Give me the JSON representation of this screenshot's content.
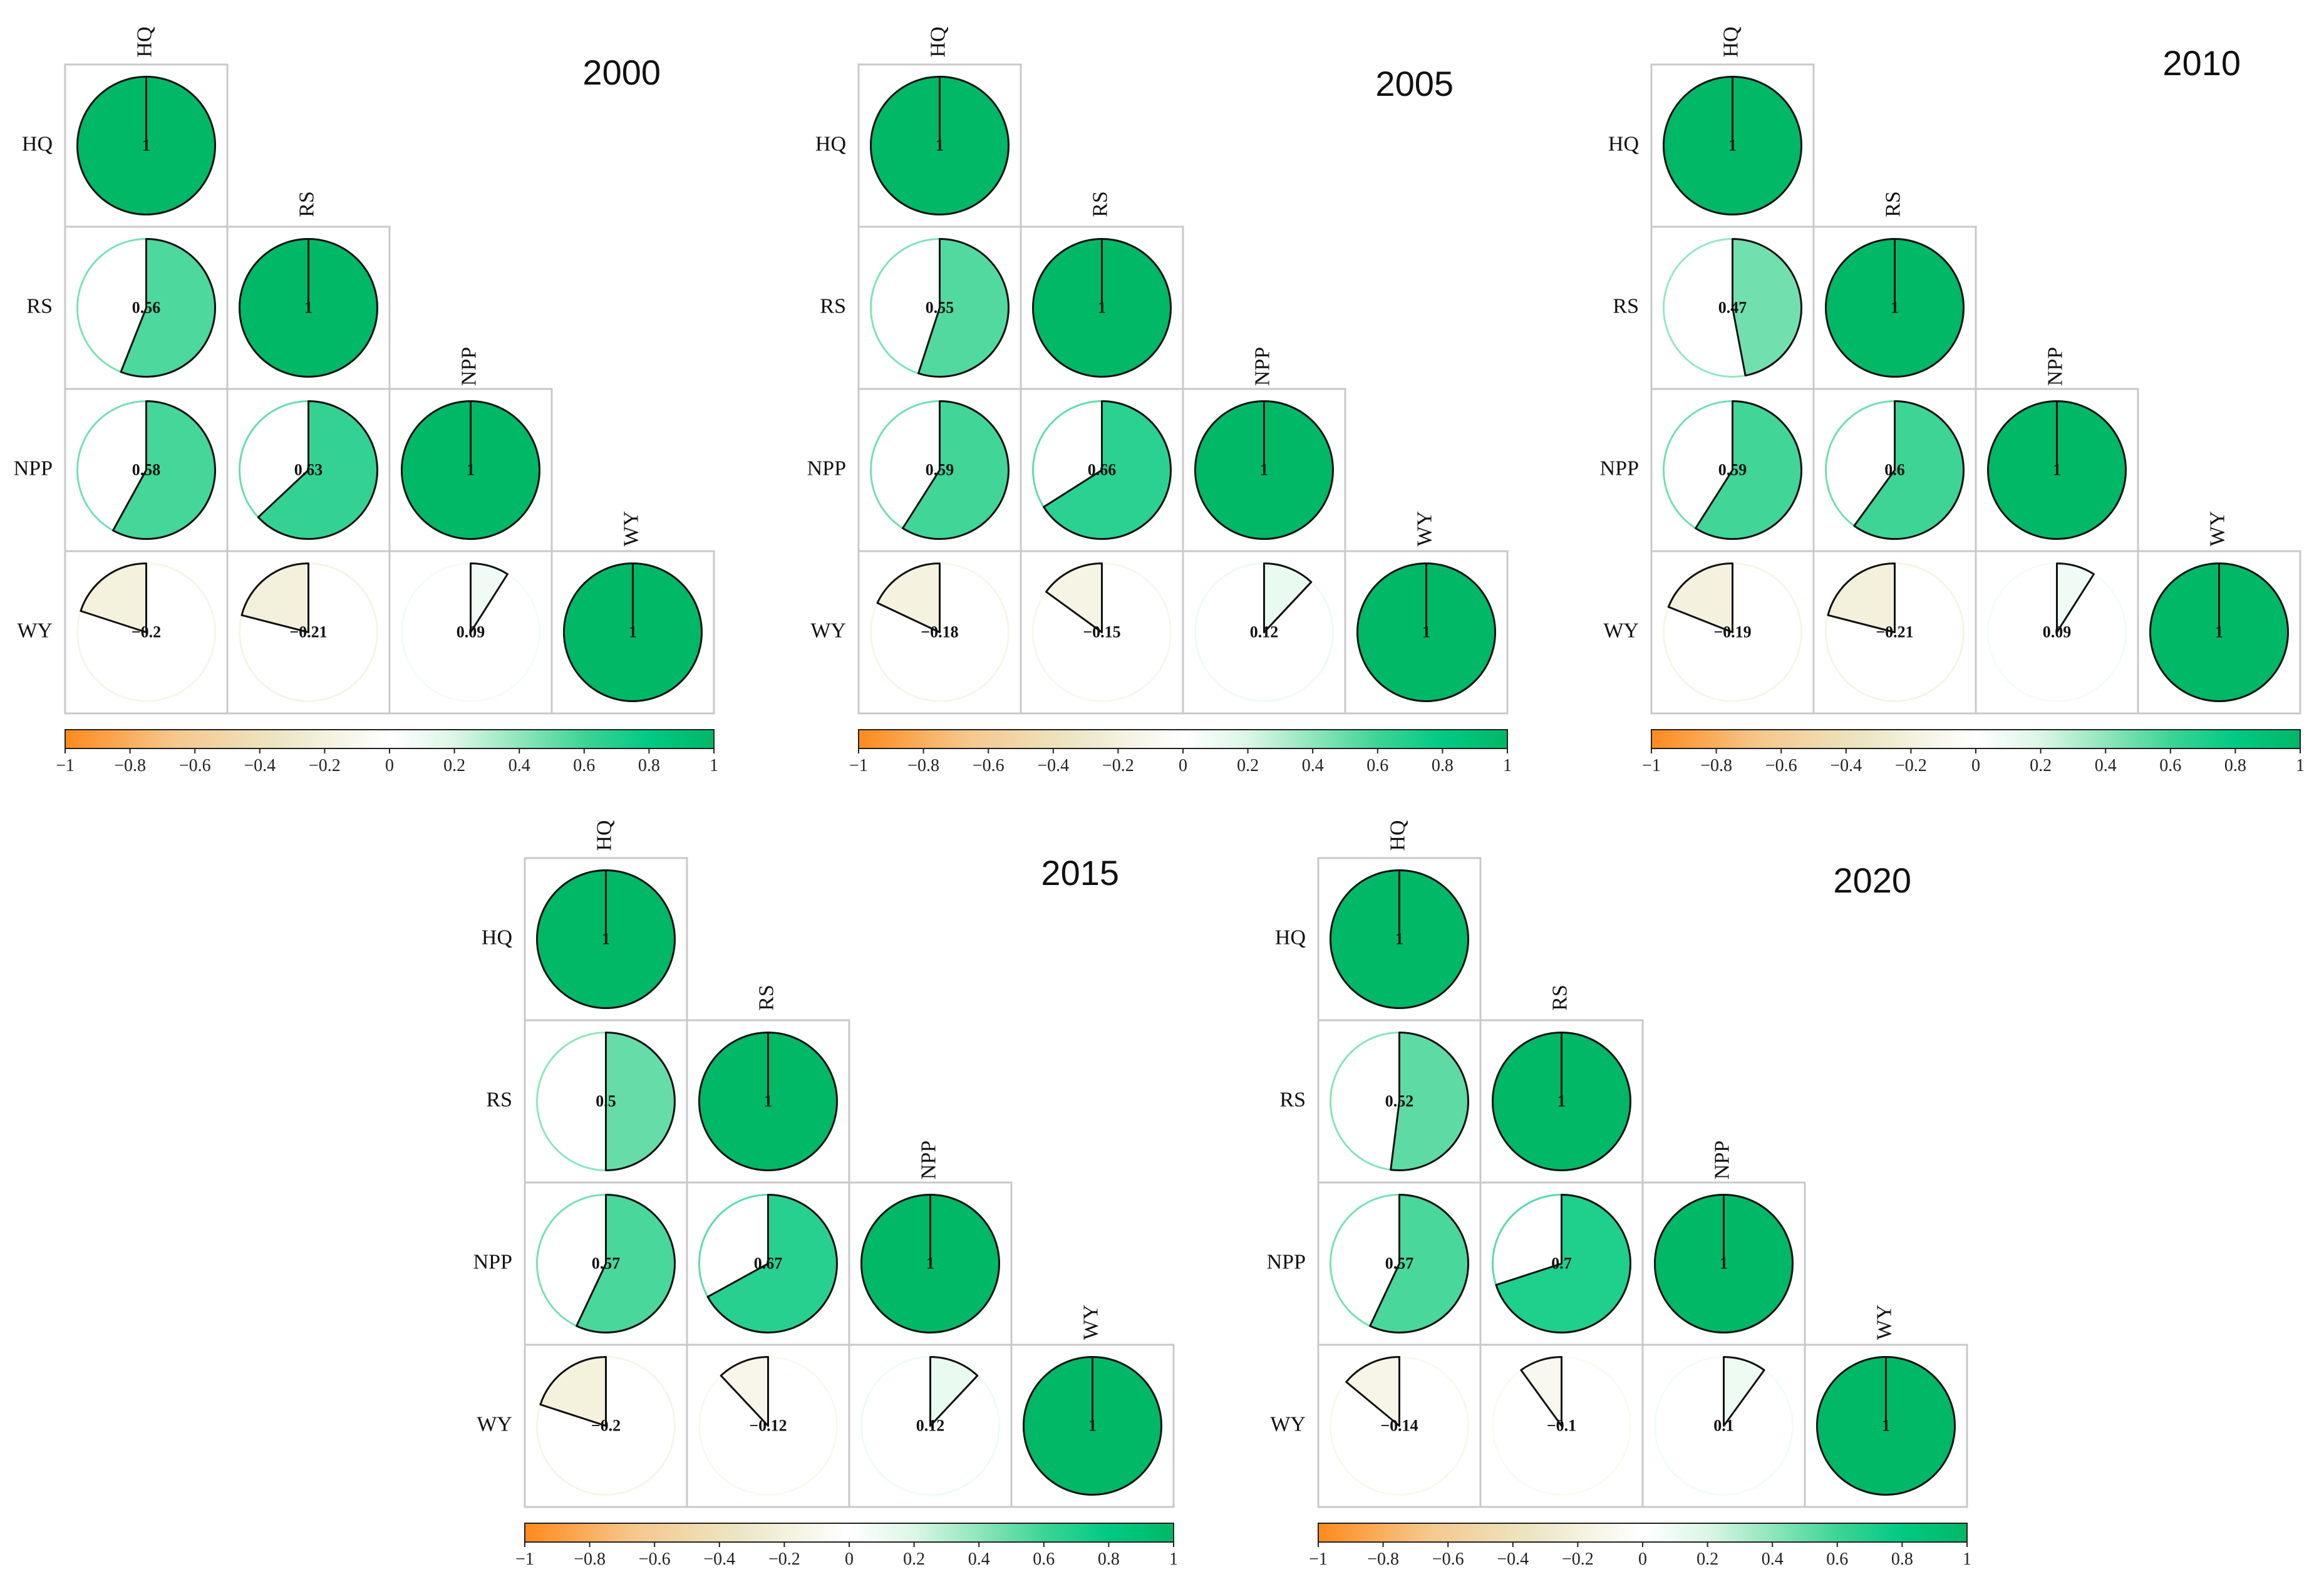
{
  "chart_data": [
    {
      "type": "heatmap",
      "subtype": "correlation-pie-matrix",
      "title": "2000",
      "variables": [
        "HQ",
        "RS",
        "NPP",
        "WY"
      ],
      "lower_triangle": [
        [
          1
        ],
        [
          0.56,
          1
        ],
        [
          0.58,
          0.63,
          1
        ],
        [
          -0.2,
          -0.21,
          0.09,
          1
        ]
      ],
      "value_labels": [
        [
          "1"
        ],
        [
          "0.56",
          "1"
        ],
        [
          "0.58",
          "0.63",
          "1"
        ],
        [
          "−0.2",
          "−0.21",
          "0.09",
          "1"
        ]
      ],
      "colorbar": {
        "range": [
          -1,
          1
        ],
        "ticks": [
          "−1",
          "−0.8",
          "−0.6",
          "−0.4",
          "−0.2",
          "0",
          "0.2",
          "0.4",
          "0.6",
          "0.8",
          "1"
        ]
      }
    },
    {
      "type": "heatmap",
      "subtype": "correlation-pie-matrix",
      "title": "2005",
      "variables": [
        "HQ",
        "RS",
        "NPP",
        "WY"
      ],
      "lower_triangle": [
        [
          1
        ],
        [
          0.55,
          1
        ],
        [
          0.59,
          0.66,
          1
        ],
        [
          -0.18,
          -0.15,
          0.12,
          1
        ]
      ],
      "value_labels": [
        [
          "1"
        ],
        [
          "0.55",
          "1"
        ],
        [
          "0.59",
          "0.66",
          "1"
        ],
        [
          "−0.18",
          "−0.15",
          "0.12",
          "1"
        ]
      ],
      "colorbar": {
        "range": [
          -1,
          1
        ],
        "ticks": [
          "−1",
          "−0.8",
          "−0.6",
          "−0.4",
          "−0.2",
          "0",
          "0.2",
          "0.4",
          "0.6",
          "0.8",
          "1"
        ]
      }
    },
    {
      "type": "heatmap",
      "subtype": "correlation-pie-matrix",
      "title": "2010",
      "variables": [
        "HQ",
        "RS",
        "NPP",
        "WY"
      ],
      "lower_triangle": [
        [
          1
        ],
        [
          0.47,
          1
        ],
        [
          0.59,
          0.6,
          1
        ],
        [
          -0.19,
          -0.21,
          0.09,
          1
        ]
      ],
      "value_labels": [
        [
          "1"
        ],
        [
          "0.47",
          "1"
        ],
        [
          "0.59",
          "0.6",
          "1"
        ],
        [
          "−0.19",
          "−0.21",
          "0.09",
          "1"
        ]
      ],
      "colorbar": {
        "range": [
          -1,
          1
        ],
        "ticks": [
          "−1",
          "−0.8",
          "−0.6",
          "−0.4",
          "−0.2",
          "0",
          "0.2",
          "0.4",
          "0.6",
          "0.8",
          "1"
        ]
      }
    },
    {
      "type": "heatmap",
      "subtype": "correlation-pie-matrix",
      "title": "2015",
      "variables": [
        "HQ",
        "RS",
        "NPP",
        "WY"
      ],
      "lower_triangle": [
        [
          1
        ],
        [
          0.5,
          1
        ],
        [
          0.57,
          0.67,
          1
        ],
        [
          -0.2,
          -0.12,
          0.12,
          1
        ]
      ],
      "value_labels": [
        [
          "1"
        ],
        [
          "0.5",
          "1"
        ],
        [
          "0.57",
          "0.67",
          "1"
        ],
        [
          "−0.2",
          "−0.12",
          "0.12",
          "1"
        ]
      ],
      "colorbar": {
        "range": [
          -1,
          1
        ],
        "ticks": [
          "−1",
          "−0.8",
          "−0.6",
          "−0.4",
          "−0.2",
          "0",
          "0.2",
          "0.4",
          "0.6",
          "0.8",
          "1"
        ]
      }
    },
    {
      "type": "heatmap",
      "subtype": "correlation-pie-matrix",
      "title": "2020",
      "variables": [
        "HQ",
        "RS",
        "NPP",
        "WY"
      ],
      "lower_triangle": [
        [
          1
        ],
        [
          0.52,
          1
        ],
        [
          0.57,
          0.7,
          1
        ],
        [
          -0.14,
          -0.1,
          0.1,
          1
        ]
      ],
      "value_labels": [
        [
          "1"
        ],
        [
          "0.52",
          "1"
        ],
        [
          "0.57",
          "0.7",
          "1"
        ],
        [
          "−0.14",
          "−0.1",
          "0.1",
          "1"
        ]
      ],
      "colorbar": {
        "range": [
          -1,
          1
        ],
        "ticks": [
          "−1",
          "−0.8",
          "−0.6",
          "−0.4",
          "−0.2",
          "0",
          "0.2",
          "0.4",
          "0.6",
          "0.8",
          "1"
        ]
      }
    }
  ],
  "colors": {
    "negative_end": "#ff8a1c",
    "neutral": "#ffffff",
    "positive_end": "#00b865",
    "positive_stops": [
      "#ffffff",
      "#dbf6e6",
      "#8fe6bb",
      "#3dd495",
      "#00c983",
      "#00b865"
    ],
    "negative_stops": [
      "#ffffff",
      "#ece7c6",
      "#f5c78c",
      "#ff8a1c"
    ],
    "cell_border": "#c9c9c9",
    "pie_outline": "#111111"
  }
}
